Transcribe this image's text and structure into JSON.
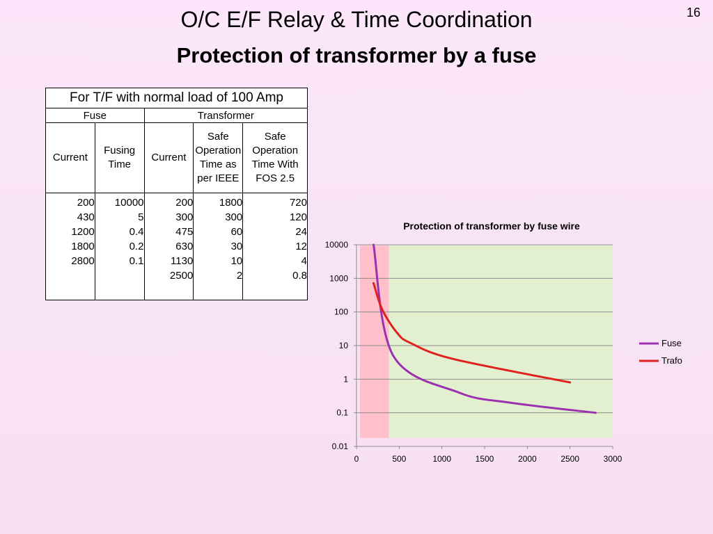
{
  "slide": {
    "page_number": "16",
    "title": "O/C E/F Relay & Time Coordination",
    "subtitle": "Protection of transformer by a fuse"
  },
  "table": {
    "caption": "For T/F with normal load of 100 Amp",
    "group_fuse": "Fuse",
    "group_transformer": "Transformer",
    "headers": [
      "Current",
      "Fusing Time",
      "Current",
      "Safe Operation Time as per IEEE",
      "Safe Operation Time With FOS 2.5"
    ],
    "columns": [
      [
        "200",
        "430",
        "1200",
        "1800",
        "2800"
      ],
      [
        "10000",
        "5",
        "0.4",
        "0.2",
        "0.1"
      ],
      [
        "200",
        "300",
        "475",
        "630",
        "1130",
        "2500"
      ],
      [
        "1800",
        "300",
        "60",
        "30",
        "10",
        "2"
      ],
      [
        "720",
        "120",
        "24",
        "12",
        "4",
        "0.8"
      ]
    ]
  },
  "chart_data": {
    "type": "line",
    "title": "Protection of transformer by fuse wire",
    "xlabel": "",
    "ylabel": "",
    "x_scale": "linear",
    "y_scale": "log",
    "xlim": [
      0,
      3000
    ],
    "ylim": [
      0.01,
      10000
    ],
    "x_ticks": [
      "0",
      "500",
      "1000",
      "1500",
      "2000",
      "2500",
      "3000"
    ],
    "y_ticks": [
      "0.01",
      "0.1",
      "1",
      "10",
      "100",
      "1000",
      "10000"
    ],
    "grid": "horizontal",
    "legend": "right",
    "series": [
      {
        "name": "Fuse",
        "color": "#9b30b0",
        "x": [
          200,
          430,
          1200,
          1800,
          2800
        ],
        "y": [
          10000,
          5,
          0.4,
          0.2,
          0.1
        ]
      },
      {
        "name": "Trafo",
        "color": "#e0211f",
        "x": [
          200,
          300,
          475,
          630,
          1130,
          2500
        ],
        "y": [
          720,
          120,
          24,
          12,
          4,
          0.8
        ]
      }
    ],
    "regions": [
      {
        "x_from": 40,
        "x_to": 380,
        "color": "#ffc0cb"
      },
      {
        "x_from": 380,
        "x_to": 3000,
        "color": "#e2f0d0"
      }
    ]
  }
}
